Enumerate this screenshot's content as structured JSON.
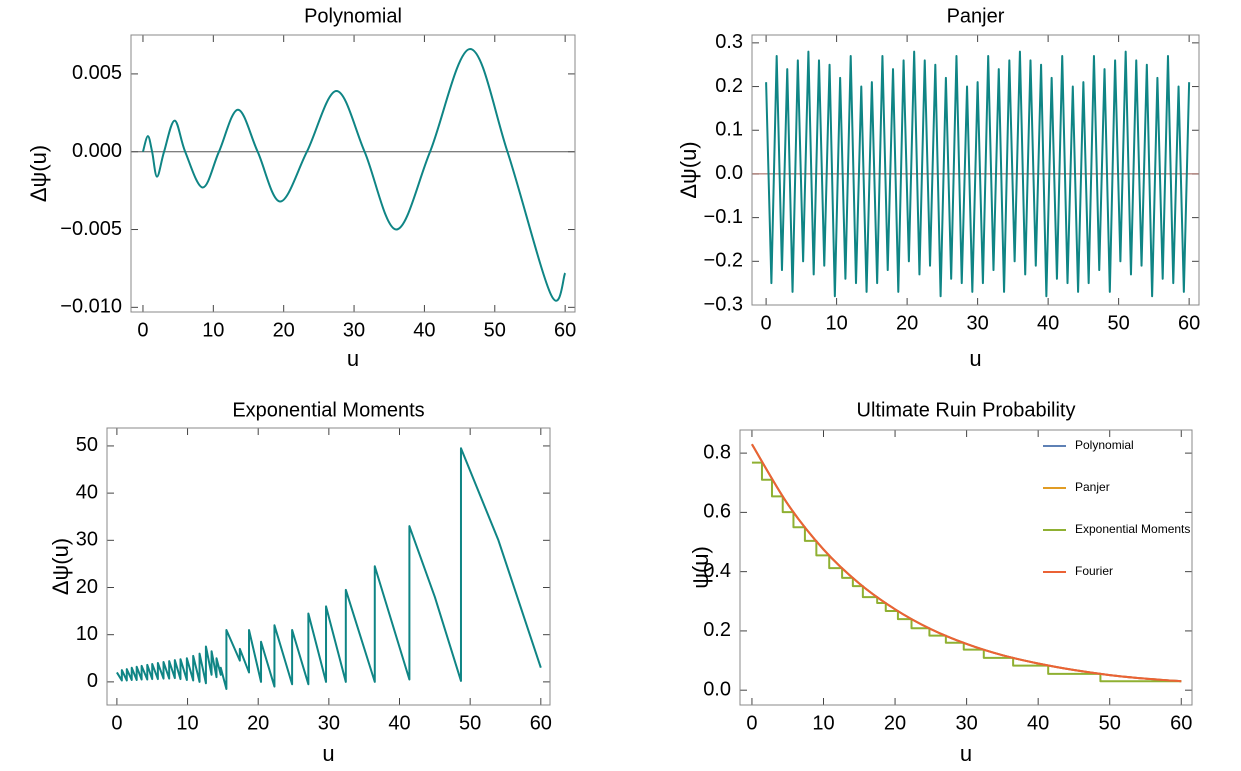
{
  "chart_data": [
    {
      "type": "line",
      "title": "Polynomial",
      "xlabel": "u",
      "ylabel": "Δψ(u)",
      "smooth": true,
      "zero_line": true,
      "xlim": [
        -1.7,
        61.4
      ],
      "ylim": [
        -0.0103,
        0.0075
      ],
      "xticks": [
        0,
        10,
        20,
        30,
        40,
        50,
        60
      ],
      "yticks": [
        {
          "value": -0.01,
          "label": "−0.010"
        },
        {
          "value": -0.005,
          "label": "−0.005"
        },
        {
          "value": 0,
          "label": "0.000"
        },
        {
          "value": 0.005,
          "label": "0.005"
        }
      ],
      "series": [
        {
          "color": "#0f8585",
          "x": [
            0,
            0.7,
            1.3,
            2,
            3,
            4.5,
            6,
            8.5,
            10.8,
            13.5,
            16.3,
            19.5,
            23.3,
            27.5,
            31.5,
            36,
            40.8,
            46.5,
            51.8,
            58,
            60
          ],
          "values": [
            0,
            0.001,
            0,
            -0.0016,
            0,
            0.002,
            0,
            -0.0023,
            0,
            0.0027,
            0,
            -0.0032,
            0,
            0.0039,
            0,
            -0.005,
            0,
            0.0066,
            0,
            -0.0092,
            -0.0078
          ]
        }
      ]
    },
    {
      "type": "line",
      "title": "Panjer",
      "xlabel": "u",
      "ylabel": "Δψ(u)",
      "smooth": false,
      "zero_line": true,
      "xlim": [
        -2,
        61.4
      ],
      "ylim": [
        -0.3,
        0.318
      ],
      "xticks": [
        0,
        10,
        20,
        30,
        40,
        50,
        60
      ],
      "yticks": [
        {
          "value": -0.3,
          "label": "−0.3"
        },
        {
          "value": -0.2,
          "label": "−0.2"
        },
        {
          "value": -0.1,
          "label": "−0.1"
        },
        {
          "value": 0,
          "label": "0.0"
        },
        0.1,
        0.2,
        0.3
      ],
      "series": [
        {
          "color": "#0f8585",
          "x": [
            0,
            0.75,
            1.5,
            2.25,
            3,
            3.75,
            4.5,
            5.25,
            6,
            6.75,
            7.5,
            8.25,
            9,
            9.75,
            10.5,
            11.25,
            12,
            12.75,
            13.5,
            14.25,
            15,
            15.75,
            16.5,
            17.25,
            18,
            18.75,
            19.5,
            20.25,
            21,
            21.75,
            22.5,
            23.25,
            24,
            24.75,
            25.5,
            26.25,
            27,
            27.75,
            28.5,
            29.25,
            30,
            30.75,
            31.5,
            32.25,
            33,
            33.75,
            34.5,
            35.25,
            36,
            36.75,
            37.5,
            38.25,
            39,
            39.75,
            40.5,
            41.25,
            42,
            42.75,
            43.5,
            44.25,
            45,
            45.75,
            46.5,
            47.25,
            48,
            48.75,
            49.5,
            50.25,
            51,
            51.75,
            52.5,
            53.25,
            54,
            54.75,
            55.5,
            56.25,
            57,
            57.75,
            58.5,
            59.25,
            60
          ],
          "values": [
            0.21,
            -0.25,
            0.27,
            -0.22,
            0.24,
            -0.27,
            0.26,
            -0.2,
            0.28,
            -0.23,
            0.26,
            -0.21,
            0.25,
            -0.28,
            0.22,
            -0.24,
            0.27,
            -0.25,
            0.2,
            -0.27,
            0.21,
            -0.25,
            0.27,
            -0.22,
            0.24,
            -0.27,
            0.26,
            -0.2,
            0.28,
            -0.23,
            0.26,
            -0.21,
            0.25,
            -0.28,
            0.22,
            -0.24,
            0.27,
            -0.25,
            0.2,
            -0.27,
            0.21,
            -0.25,
            0.27,
            -0.22,
            0.24,
            -0.27,
            0.26,
            -0.2,
            0.28,
            -0.23,
            0.26,
            -0.21,
            0.25,
            -0.28,
            0.22,
            -0.24,
            0.27,
            -0.25,
            0.2,
            -0.27,
            0.21,
            -0.25,
            0.27,
            -0.22,
            0.24,
            -0.27,
            0.26,
            -0.2,
            0.28,
            -0.23,
            0.26,
            -0.21,
            0.25,
            -0.28,
            0.22,
            -0.24,
            0.27,
            -0.25,
            0.2,
            -0.27,
            0.21
          ]
        }
      ]
    },
    {
      "type": "line",
      "title": "Exponential Moments",
      "xlabel": "u",
      "ylabel": "Δψ(u)",
      "smooth": false,
      "zero_line": false,
      "xlim": [
        -1.4,
        61.3
      ],
      "ylim": [
        -4.9,
        53.8
      ],
      "xticks": [
        0,
        10,
        20,
        30,
        40,
        50,
        60
      ],
      "yticks": [
        0,
        10,
        20,
        30,
        40,
        50
      ],
      "series": [
        {
          "color": "#0f8585",
          "x": [
            0,
            0.7,
            0.7,
            1.4,
            1.4,
            2.1,
            2.1,
            2.8,
            2.8,
            3.5,
            3.5,
            4.3,
            4.3,
            5,
            5,
            5.8,
            5.8,
            6.6,
            6.6,
            7.4,
            7.4,
            8.2,
            8.2,
            9,
            9,
            9.9,
            9.9,
            10.8,
            10.8,
            11.7,
            11.7,
            12.6,
            12.6,
            13.4,
            13.4,
            14.1,
            14.1,
            14.7,
            14.7,
            15.5,
            15.5,
            17.4,
            17.4,
            18.7,
            18.7,
            20.4,
            20.4,
            22.3,
            22.3,
            24.8,
            24.8,
            27.1,
            27.1,
            29.6,
            29.6,
            32.4,
            32.4,
            36.5,
            36.5,
            41.4,
            41.4,
            45,
            48.7,
            48.7,
            54,
            60
          ],
          "values": [
            2,
            0.3,
            2.5,
            0.3,
            2.7,
            0.4,
            3,
            0.4,
            3.2,
            0.5,
            3.4,
            0.5,
            3.6,
            0.6,
            3.8,
            0.6,
            4,
            0.7,
            4.2,
            0.7,
            4.4,
            0.8,
            4.6,
            0.6,
            4.8,
            0.4,
            5,
            0.3,
            5.5,
            0,
            6,
            -0.3,
            7.5,
            1.5,
            6.5,
            1,
            5,
            1.5,
            3,
            -1.5,
            11,
            4.5,
            7,
            2,
            11,
            0,
            8.5,
            -1,
            12,
            -0.5,
            11,
            -0.5,
            14.5,
            0,
            16,
            0,
            19.5,
            0,
            24.5,
            0.5,
            33,
            18,
            0.2,
            49.5,
            30,
            3
          ]
        }
      ]
    },
    {
      "type": "line",
      "title": "Ultimate Ruin Probability",
      "xlabel": "u",
      "ylabel": "ψ(u)",
      "smooth": true,
      "zero_line": false,
      "legend": "top-right",
      "xlim": [
        -1.67,
        61.5
      ],
      "ylim": [
        -0.05,
        0.878
      ],
      "xticks": [
        0,
        10,
        20,
        30,
        40,
        50,
        60
      ],
      "yticks": [
        {
          "value": 0,
          "label": "0.0"
        },
        0.2,
        0.4,
        0.6,
        0.8
      ],
      "series": [
        {
          "name": "Polynomial",
          "color": "#5e81b5",
          "x": [
            0,
            5,
            10,
            15,
            20,
            25,
            30,
            35,
            40,
            45,
            50,
            55,
            60
          ],
          "values": [
            0.83,
            0.628,
            0.475,
            0.36,
            0.273,
            0.206,
            0.156,
            0.118,
            0.09,
            0.068,
            0.051,
            0.039,
            0.03
          ]
        },
        {
          "name": "Panjer",
          "color": "#e19c24",
          "x": [
            0,
            5,
            10,
            15,
            20,
            25,
            30,
            35,
            40,
            45,
            50,
            55,
            60
          ],
          "values": [
            0.83,
            0.628,
            0.475,
            0.36,
            0.273,
            0.206,
            0.156,
            0.118,
            0.09,
            0.068,
            0.051,
            0.039,
            0.03
          ]
        },
        {
          "name": "Exponential Moments",
          "color": "#8fb032",
          "step": true,
          "x": [
            0,
            1.4,
            2.8,
            4.3,
            5.8,
            7.4,
            9,
            10.8,
            12.6,
            14.1,
            15.5,
            17.5,
            18.7,
            20.4,
            22.3,
            24.8,
            27.1,
            29.6,
            32.4,
            36.5,
            41.4,
            48.7,
            60
          ],
          "values": [
            0.768,
            0.71,
            0.654,
            0.601,
            0.55,
            0.504,
            0.455,
            0.412,
            0.379,
            0.351,
            0.314,
            0.294,
            0.267,
            0.24,
            0.209,
            0.184,
            0.16,
            0.137,
            0.109,
            0.083,
            0.055,
            0.03,
            0.03
          ]
        },
        {
          "name": "Fourier",
          "color": "#eb6235",
          "x": [
            0,
            5,
            10,
            15,
            20,
            25,
            30,
            35,
            40,
            45,
            50,
            55,
            60
          ],
          "values": [
            0.83,
            0.628,
            0.475,
            0.36,
            0.273,
            0.206,
            0.156,
            0.118,
            0.09,
            0.068,
            0.051,
            0.039,
            0.03
          ]
        }
      ]
    }
  ]
}
